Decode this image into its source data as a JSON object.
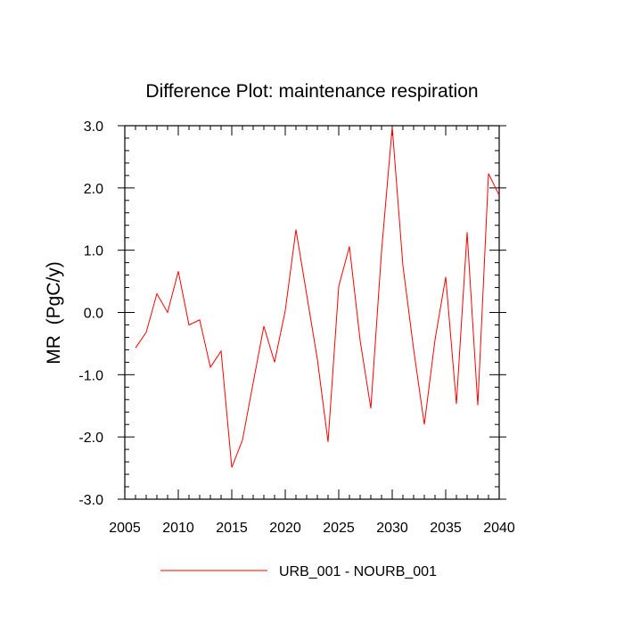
{
  "chart_data": {
    "type": "line",
    "title": "Difference Plot: maintenance respiration",
    "xlabel": "",
    "ylabel": "MR  (PgC/y)",
    "xlim": [
      2005,
      2040
    ],
    "ylim": [
      -3.0,
      3.0
    ],
    "x_ticks": [
      2005,
      2010,
      2015,
      2020,
      2025,
      2030,
      2035,
      2040
    ],
    "x_tick_labels": [
      "2005",
      "2010",
      "2015",
      "2020",
      "2025",
      "2030",
      "2035",
      "2040"
    ],
    "y_ticks": [
      -3.0,
      -2.0,
      -1.0,
      0.0,
      1.0,
      2.0,
      3.0
    ],
    "y_tick_labels": [
      "-3.0",
      "-2.0",
      "-1.0",
      "0.0",
      "1.0",
      "2.0",
      "3.0"
    ],
    "grid": false,
    "legend_position": "bottom-center",
    "series": [
      {
        "name": "URB_001 - NOURB_001",
        "color": "#ff0000",
        "x": [
          2006,
          2007,
          2008,
          2009,
          2010,
          2011,
          2012,
          2013,
          2014,
          2015,
          2016,
          2017,
          2018,
          2019,
          2020,
          2021,
          2022,
          2023,
          2024,
          2025,
          2026,
          2027,
          2028,
          2029,
          2030,
          2031,
          2032,
          2033,
          2034,
          2035,
          2036,
          2037,
          2038,
          2039,
          2040
        ],
        "values": [
          -0.57,
          -0.32,
          0.3,
          0.0,
          0.66,
          -0.2,
          -0.12,
          -0.88,
          -0.62,
          -2.49,
          -2.05,
          -1.13,
          -0.22,
          -0.8,
          0.03,
          1.33,
          0.29,
          -0.75,
          -2.08,
          0.42,
          1.06,
          -0.45,
          -1.54,
          0.98,
          2.98,
          0.75,
          -0.59,
          -1.8,
          -0.44,
          0.57,
          -1.47,
          1.29,
          -1.49,
          2.23,
          1.88
        ]
      }
    ]
  }
}
